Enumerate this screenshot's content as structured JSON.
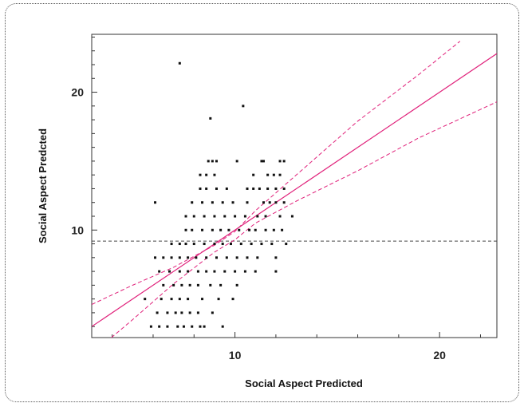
{
  "chart_data": {
    "type": "scatter",
    "xlabel": "Social Aspect  Predicted",
    "ylabel": "Social Aspect  Predcted",
    "xlim": [
      3,
      22.8
    ],
    "ylim": [
      2.2,
      24.2
    ],
    "xticks": [
      10,
      20
    ],
    "yticks": [
      10,
      20
    ],
    "grid": false,
    "mean_line_y": 9.2,
    "fit_line": {
      "slope": 1.0,
      "intercept": 0.0
    },
    "confidence_band": {
      "lower": [
        [
          3,
          1.0
        ],
        [
          5,
          3.5
        ],
        [
          7,
          6.1
        ],
        [
          9,
          8.4
        ],
        [
          10,
          9.3
        ],
        [
          11,
          10.5
        ],
        [
          13,
          12.1
        ],
        [
          16,
          14.3
        ],
        [
          19,
          16.7
        ],
        [
          22.8,
          19.3
        ]
      ],
      "upper": [
        [
          3,
          4.6
        ],
        [
          5,
          6.0
        ],
        [
          7,
          7.3
        ],
        [
          9,
          8.9
        ],
        [
          10,
          9.9
        ],
        [
          11,
          11.4
        ],
        [
          13,
          14.0
        ],
        [
          16,
          17.9
        ],
        [
          19,
          21.3
        ],
        [
          21,
          23.7
        ]
      ]
    },
    "points": [
      [
        7.3,
        22.1
      ],
      [
        10.4,
        19.0
      ],
      [
        8.8,
        18.1
      ],
      [
        8.7,
        15
      ],
      [
        8.9,
        15
      ],
      [
        9.1,
        15
      ],
      [
        10.1,
        15
      ],
      [
        11.3,
        15
      ],
      [
        11.4,
        15
      ],
      [
        12.2,
        15
      ],
      [
        12.4,
        15
      ],
      [
        8.3,
        14
      ],
      [
        8.6,
        14
      ],
      [
        9.0,
        14
      ],
      [
        10.9,
        14
      ],
      [
        11.6,
        14
      ],
      [
        11.9,
        14
      ],
      [
        12.2,
        14
      ],
      [
        8.3,
        13
      ],
      [
        8.6,
        13
      ],
      [
        9.1,
        13
      ],
      [
        9.6,
        13
      ],
      [
        10.6,
        13
      ],
      [
        10.9,
        13
      ],
      [
        11.2,
        13
      ],
      [
        11.6,
        13
      ],
      [
        12.0,
        13
      ],
      [
        12.4,
        13
      ],
      [
        6.1,
        12
      ],
      [
        7.9,
        12
      ],
      [
        8.4,
        12
      ],
      [
        8.9,
        12
      ],
      [
        9.4,
        12
      ],
      [
        9.9,
        12
      ],
      [
        10.6,
        12
      ],
      [
        11.4,
        12
      ],
      [
        11.7,
        12
      ],
      [
        12.0,
        12
      ],
      [
        12.4,
        12
      ],
      [
        7.6,
        11
      ],
      [
        8.0,
        11
      ],
      [
        8.5,
        11
      ],
      [
        9.0,
        11
      ],
      [
        9.5,
        11
      ],
      [
        10.0,
        11
      ],
      [
        10.5,
        11
      ],
      [
        11.1,
        11
      ],
      [
        11.5,
        11
      ],
      [
        12.2,
        11
      ],
      [
        12.8,
        11
      ],
      [
        7.6,
        10
      ],
      [
        7.9,
        10
      ],
      [
        8.4,
        10
      ],
      [
        8.9,
        10
      ],
      [
        9.3,
        10
      ],
      [
        9.7,
        10
      ],
      [
        10.2,
        10
      ],
      [
        10.7,
        10
      ],
      [
        11.0,
        10
      ],
      [
        11.5,
        10
      ],
      [
        11.9,
        10
      ],
      [
        12.3,
        10
      ],
      [
        6.9,
        9
      ],
      [
        7.3,
        9
      ],
      [
        7.6,
        9
      ],
      [
        8.0,
        9
      ],
      [
        8.5,
        9
      ],
      [
        9.0,
        9
      ],
      [
        9.4,
        9
      ],
      [
        9.8,
        9
      ],
      [
        10.3,
        9
      ],
      [
        10.8,
        9
      ],
      [
        11.3,
        9
      ],
      [
        11.8,
        9
      ],
      [
        12.5,
        9
      ],
      [
        6.1,
        8
      ],
      [
        6.5,
        8
      ],
      [
        6.9,
        8
      ],
      [
        7.3,
        8
      ],
      [
        7.7,
        8
      ],
      [
        8.1,
        8
      ],
      [
        8.6,
        8
      ],
      [
        9.1,
        8
      ],
      [
        9.6,
        8
      ],
      [
        10.1,
        8
      ],
      [
        10.6,
        8
      ],
      [
        11.1,
        8
      ],
      [
        12.0,
        8
      ],
      [
        6.3,
        7
      ],
      [
        6.8,
        7
      ],
      [
        7.3,
        7
      ],
      [
        7.7,
        7
      ],
      [
        8.2,
        7
      ],
      [
        8.6,
        7
      ],
      [
        9.0,
        7
      ],
      [
        9.5,
        7
      ],
      [
        10.0,
        7
      ],
      [
        10.5,
        7
      ],
      [
        11.0,
        7
      ],
      [
        12.0,
        7
      ],
      [
        6.5,
        6
      ],
      [
        7.0,
        6
      ],
      [
        7.4,
        6
      ],
      [
        7.8,
        6
      ],
      [
        8.2,
        6
      ],
      [
        8.8,
        6
      ],
      [
        9.3,
        6
      ],
      [
        10.1,
        6
      ],
      [
        5.6,
        5
      ],
      [
        6.4,
        5
      ],
      [
        6.9,
        5
      ],
      [
        7.3,
        5
      ],
      [
        7.7,
        5
      ],
      [
        8.4,
        5
      ],
      [
        9.2,
        5
      ],
      [
        9.9,
        5
      ],
      [
        6.2,
        4
      ],
      [
        6.7,
        4
      ],
      [
        7.1,
        4
      ],
      [
        7.4,
        4
      ],
      [
        7.8,
        4
      ],
      [
        8.2,
        4
      ],
      [
        8.9,
        4
      ],
      [
        5.9,
        3
      ],
      [
        6.3,
        3
      ],
      [
        6.7,
        3
      ],
      [
        7.2,
        3
      ],
      [
        7.5,
        3
      ],
      [
        7.9,
        3
      ],
      [
        8.3,
        3
      ],
      [
        8.5,
        3
      ],
      [
        9.4,
        3
      ]
    ]
  }
}
